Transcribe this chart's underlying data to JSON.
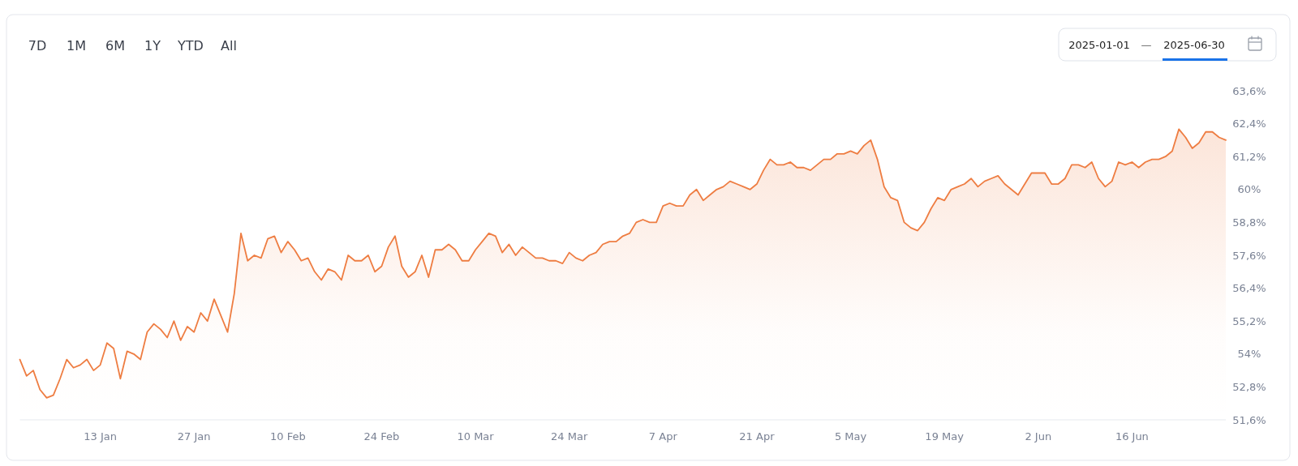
{
  "chart_data": {
    "type": "area",
    "annotations": [
      "7D",
      "1M",
      "6M",
      "1Y",
      "YTD",
      "All",
      "2025-01-01",
      "—",
      "2025-06-30"
    ],
    "xticks": [
      {
        "value": "2025-01-13",
        "label": "13 Jan"
      },
      {
        "value": "2025-01-27",
        "label": "27 Jan"
      },
      {
        "value": "2025-02-10",
        "label": "10 Feb"
      },
      {
        "value": "2025-02-24",
        "label": "24 Feb"
      },
      {
        "value": "2025-03-10",
        "label": "10 Mar"
      },
      {
        "value": "2025-03-24",
        "label": "24 Mar"
      },
      {
        "value": "2025-04-07",
        "label": "7 Apr"
      },
      {
        "value": "2025-04-21",
        "label": "21 Apr"
      },
      {
        "value": "2025-05-05",
        "label": "5 May"
      },
      {
        "value": "2025-05-19",
        "label": "19 May"
      },
      {
        "value": "2025-06-02",
        "label": "2 Jun"
      },
      {
        "value": "2025-06-16",
        "label": "16 Jun"
      }
    ],
    "xlim": [
      "2025-01-01",
      "2025-06-30"
    ],
    "ylim": [
      51.6,
      63.6
    ],
    "yticks": [
      {
        "value": 51.6,
        "label": "51,6%"
      },
      {
        "value": 52.8,
        "label": "52,8%"
      },
      {
        "value": 54,
        "label": "54%"
      },
      {
        "value": 55.2,
        "label": "55,2%"
      },
      {
        "value": 56.4,
        "label": "56,4%"
      },
      {
        "value": 57.6,
        "label": "57,6%"
      },
      {
        "value": 58.8,
        "label": "58,8%"
      },
      {
        "value": 60,
        "label": "60%"
      },
      {
        "value": 61.2,
        "label": "61,2%"
      },
      {
        "value": 62.4,
        "label": "62,4%"
      },
      {
        "value": 63.6,
        "label": "63,6%"
      }
    ],
    "grid": false,
    "x": [
      "2025-01-01",
      "2025-01-02",
      "2025-01-03",
      "2025-01-04",
      "2025-01-05",
      "2025-01-06",
      "2025-01-07",
      "2025-01-08",
      "2025-01-09",
      "2025-01-10",
      "2025-01-11",
      "2025-01-12",
      "2025-01-13",
      "2025-01-14",
      "2025-01-15",
      "2025-01-16",
      "2025-01-17",
      "2025-01-18",
      "2025-01-19",
      "2025-01-20",
      "2025-01-21",
      "2025-01-22",
      "2025-01-23",
      "2025-01-24",
      "2025-01-25",
      "2025-01-26",
      "2025-01-27",
      "2025-01-28",
      "2025-01-29",
      "2025-01-30",
      "2025-01-31",
      "2025-02-01",
      "2025-02-02",
      "2025-02-03",
      "2025-02-04",
      "2025-02-05",
      "2025-02-06",
      "2025-02-07",
      "2025-02-08",
      "2025-02-09",
      "2025-02-10",
      "2025-02-11",
      "2025-02-12",
      "2025-02-13",
      "2025-02-14",
      "2025-02-15",
      "2025-02-16",
      "2025-02-17",
      "2025-02-18",
      "2025-02-19",
      "2025-02-20",
      "2025-02-21",
      "2025-02-22",
      "2025-02-23",
      "2025-02-24",
      "2025-02-25",
      "2025-02-26",
      "2025-02-27",
      "2025-02-28",
      "2025-03-01",
      "2025-03-02",
      "2025-03-03",
      "2025-03-04",
      "2025-03-05",
      "2025-03-06",
      "2025-03-07",
      "2025-03-08",
      "2025-03-09",
      "2025-03-10",
      "2025-03-11",
      "2025-03-12",
      "2025-03-13",
      "2025-03-14",
      "2025-03-15",
      "2025-03-16",
      "2025-03-17",
      "2025-03-18",
      "2025-03-19",
      "2025-03-20",
      "2025-03-21",
      "2025-03-22",
      "2025-03-23",
      "2025-03-24",
      "2025-03-25",
      "2025-03-26",
      "2025-03-27",
      "2025-03-28",
      "2025-03-29",
      "2025-03-30",
      "2025-03-31",
      "2025-04-01",
      "2025-04-02",
      "2025-04-03",
      "2025-04-04",
      "2025-04-05",
      "2025-04-06",
      "2025-04-07",
      "2025-04-08",
      "2025-04-09",
      "2025-04-10",
      "2025-04-11",
      "2025-04-12",
      "2025-04-13",
      "2025-04-14",
      "2025-04-15",
      "2025-04-16",
      "2025-04-17",
      "2025-04-18",
      "2025-04-19",
      "2025-04-20",
      "2025-04-21",
      "2025-04-22",
      "2025-04-23",
      "2025-04-24",
      "2025-04-25",
      "2025-04-26",
      "2025-04-27",
      "2025-04-28",
      "2025-04-29",
      "2025-04-30",
      "2025-05-01",
      "2025-05-02",
      "2025-05-03",
      "2025-05-04",
      "2025-05-05",
      "2025-05-06",
      "2025-05-07",
      "2025-05-08",
      "2025-05-09",
      "2025-05-10",
      "2025-05-11",
      "2025-05-12",
      "2025-05-13",
      "2025-05-14",
      "2025-05-15",
      "2025-05-16",
      "2025-05-17",
      "2025-05-18",
      "2025-05-19",
      "2025-05-20",
      "2025-05-21",
      "2025-05-22",
      "2025-05-23",
      "2025-05-24",
      "2025-05-25",
      "2025-05-26",
      "2025-05-27",
      "2025-05-28",
      "2025-05-29",
      "2025-05-30",
      "2025-05-31",
      "2025-06-01",
      "2025-06-02",
      "2025-06-03",
      "2025-06-04",
      "2025-06-05",
      "2025-06-06",
      "2025-06-07",
      "2025-06-08",
      "2025-06-09",
      "2025-06-10",
      "2025-06-11",
      "2025-06-12",
      "2025-06-13",
      "2025-06-14",
      "2025-06-15",
      "2025-06-16",
      "2025-06-17",
      "2025-06-18",
      "2025-06-19",
      "2025-06-20",
      "2025-06-21",
      "2025-06-22",
      "2025-06-23",
      "2025-06-24",
      "2025-06-25",
      "2025-06-26",
      "2025-06-27",
      "2025-06-28",
      "2025-06-29",
      "2025-06-30"
    ],
    "series": [
      {
        "color": "#ee7d42",
        "values": [
          53.8,
          53.2,
          53.4,
          52.7,
          52.4,
          52.5,
          53.1,
          53.8,
          53.5,
          53.6,
          53.8,
          53.4,
          53.6,
          54.4,
          54.2,
          53.1,
          54.1,
          54.0,
          53.8,
          54.8,
          55.1,
          54.9,
          54.6,
          55.2,
          54.5,
          55.0,
          54.8,
          55.5,
          55.2,
          56.0,
          55.4,
          54.8,
          56.2,
          58.4,
          57.4,
          57.6,
          57.5,
          58.2,
          58.3,
          57.7,
          58.1,
          57.8,
          57.4,
          57.5,
          57.0,
          56.7,
          57.1,
          57.0,
          56.7,
          57.6,
          57.4,
          57.4,
          57.6,
          57.0,
          57.2,
          57.9,
          58.3,
          57.2,
          56.8,
          57.0,
          57.6,
          56.8,
          57.8,
          57.8,
          58.0,
          57.8,
          57.4,
          57.4,
          57.8,
          58.1,
          58.4,
          58.3,
          57.7,
          58.0,
          57.6,
          57.9,
          57.7,
          57.5,
          57.5,
          57.4,
          57.4,
          57.3,
          57.7,
          57.5,
          57.4,
          57.6,
          57.7,
          58.0,
          58.1,
          58.1,
          58.3,
          58.4,
          58.8,
          58.9,
          58.8,
          58.8,
          59.4,
          59.5,
          59.4,
          59.4,
          59.8,
          60.0,
          59.6,
          59.8,
          60.0,
          60.1,
          60.3,
          60.2,
          60.1,
          60.0,
          60.2,
          60.7,
          61.1,
          60.9,
          60.9,
          61.0,
          60.8,
          60.8,
          60.7,
          60.9,
          61.1,
          61.1,
          61.3,
          61.3,
          61.4,
          61.3,
          61.6,
          61.8,
          61.1,
          60.1,
          59.7,
          59.6,
          58.8,
          58.6,
          58.5,
          58.8,
          59.3,
          59.7,
          59.6,
          60.0,
          60.1,
          60.2,
          60.4,
          60.1,
          60.3,
          60.4,
          60.5,
          60.2,
          60.0,
          59.8,
          60.2,
          60.6,
          60.6,
          60.6,
          60.2,
          60.2,
          60.4,
          60.9,
          60.9,
          60.8,
          61.0,
          60.4,
          60.1,
          60.3,
          61.0,
          60.9,
          61.0,
          60.8,
          61.0,
          61.1,
          61.1,
          61.2,
          61.4,
          62.2,
          61.9,
          61.5,
          61.7,
          62.1,
          62.1,
          61.9,
          61.8
        ]
      }
    ]
  }
}
